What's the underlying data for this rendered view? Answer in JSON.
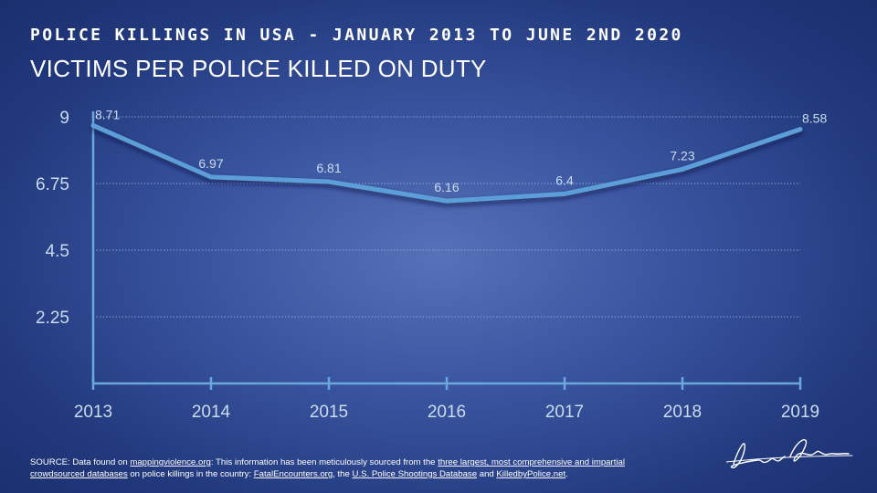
{
  "supertitle": "POLICE KILLINGS IN USA - JANUARY 2013 TO JUNE 2ND 2020",
  "title": "VICTIMS PER POLICE KILLED ON DUTY",
  "colors": {
    "line": "#5b9fd8",
    "label": "#c9dcf0",
    "axis": "#6aa8dc",
    "grid": "#8fb0dd"
  },
  "chart_data": {
    "type": "line",
    "categories": [
      "2013",
      "2014",
      "2015",
      "2016",
      "2017",
      "2018",
      "2019"
    ],
    "values": [
      8.71,
      6.97,
      6.81,
      6.16,
      6.4,
      7.23,
      8.58
    ],
    "data_labels": [
      "8.71",
      "6.97",
      "6.81",
      "6.16",
      "6.4",
      "7.23",
      "8.58"
    ],
    "y_ticks": [
      "9",
      "6.75",
      "4.5",
      "2.25"
    ],
    "y_tick_values": [
      9,
      6.75,
      4.5,
      2.25
    ],
    "ylim": [
      0,
      9
    ],
    "grid": true,
    "title": "VICTIMS PER POLICE KILLED ON DUTY",
    "xlabel": "",
    "ylabel": ""
  },
  "source": {
    "prefix": "SOURCE: Data found on ",
    "link1": "mappingviolence.org",
    "text1": ": This information has been meticulously sourced from the ",
    "link2": "three largest, most comprehensive and impartial crowdsourced databases",
    "text2": " on police killings in the country: ",
    "link3": "FatalEncounters.org",
    "text3": ", the ",
    "link4": "U.S. Police Shootings Database",
    "text4": " and ",
    "link5": "KilledbyPolice.net",
    "text5": "."
  },
  "signature_icon": "handwritten-signature"
}
